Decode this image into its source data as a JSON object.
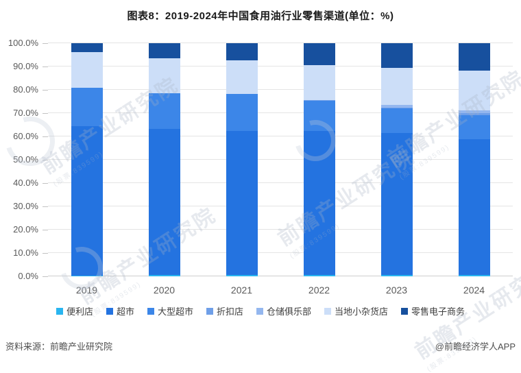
{
  "title": "图表8：2019-2024年中国食用油行业零售渠道(单位：%)",
  "footer": {
    "source": "资料来源：前瞻产业研究院",
    "credit": "@前瞻经济学人APP"
  },
  "watermark": {
    "text": "前瞻产业研究院",
    "stock_code": "(股票:839599)"
  },
  "chart_data": {
    "type": "bar",
    "stacked": true,
    "title": "图表8：2019-2024年中国食用油行业零售渠道(单位：%)",
    "categories": [
      "2019",
      "2020",
      "2021",
      "2022",
      "2023",
      "2024"
    ],
    "series": [
      {
        "name": "便利店",
        "color": "#29b5f0",
        "values": [
          0.4,
          0.5,
          0.5,
          0.5,
          0.5,
          0.5
        ]
      },
      {
        "name": "超市",
        "color": "#2473e0",
        "values": [
          64.0,
          62.6,
          62.0,
          61.9,
          60.9,
          58.3
        ]
      },
      {
        "name": "大型超市",
        "color": "#3c86e8",
        "values": [
          16.5,
          15.4,
          15.8,
          13.0,
          10.8,
          10.4
        ]
      },
      {
        "name": "折扣店",
        "color": "#6f9fe8",
        "values": [
          0.0,
          0.0,
          0.0,
          0.1,
          0.3,
          0.7
        ]
      },
      {
        "name": "仓储俱乐部",
        "color": "#94b7ef",
        "values": [
          0.0,
          0.0,
          0.0,
          0.2,
          1.0,
          1.4
        ]
      },
      {
        "name": "当地小杂货店",
        "color": "#ccdef8",
        "values": [
          15.2,
          15.1,
          14.4,
          15.0,
          16.0,
          17.0
        ]
      },
      {
        "name": "零售电子商务",
        "color": "#17509e",
        "values": [
          3.9,
          6.4,
          7.3,
          9.3,
          10.5,
          11.7
        ]
      }
    ],
    "xlabel": "",
    "ylabel": "",
    "ylim": [
      0,
      100
    ],
    "ytick_step": 10,
    "y_tick_labels": [
      "0.0%",
      "10.0%",
      "20.0%",
      "30.0%",
      "40.0%",
      "50.0%",
      "60.0%",
      "70.0%",
      "80.0%",
      "90.0%",
      "100.0%"
    ],
    "grid": true,
    "legend_position": "bottom"
  }
}
